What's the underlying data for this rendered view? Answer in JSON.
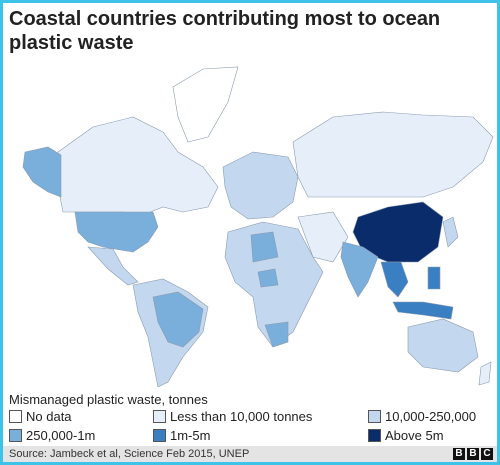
{
  "header": {
    "title": "Coastal countries contributing most to ocean plastic waste"
  },
  "legend": {
    "title": "Mismanaged plastic waste, tonnes",
    "items": [
      {
        "label": "No data",
        "color": "#ffffff"
      },
      {
        "label": "Less than 10,000 tonnes",
        "color": "#e6eff9"
      },
      {
        "label": "10,000-250,000",
        "color": "#c3d7ee"
      },
      {
        "label": "250,000-1m",
        "color": "#7aaedb"
      },
      {
        "label": "1m-5m",
        "color": "#3a7fc2"
      },
      {
        "label": "Above 5m",
        "color": "#0b2c6a"
      }
    ]
  },
  "footer": {
    "source": "Source: Jambeck et al, Science Feb 2015, UNEP",
    "logo": [
      "B",
      "B",
      "C"
    ]
  }
}
